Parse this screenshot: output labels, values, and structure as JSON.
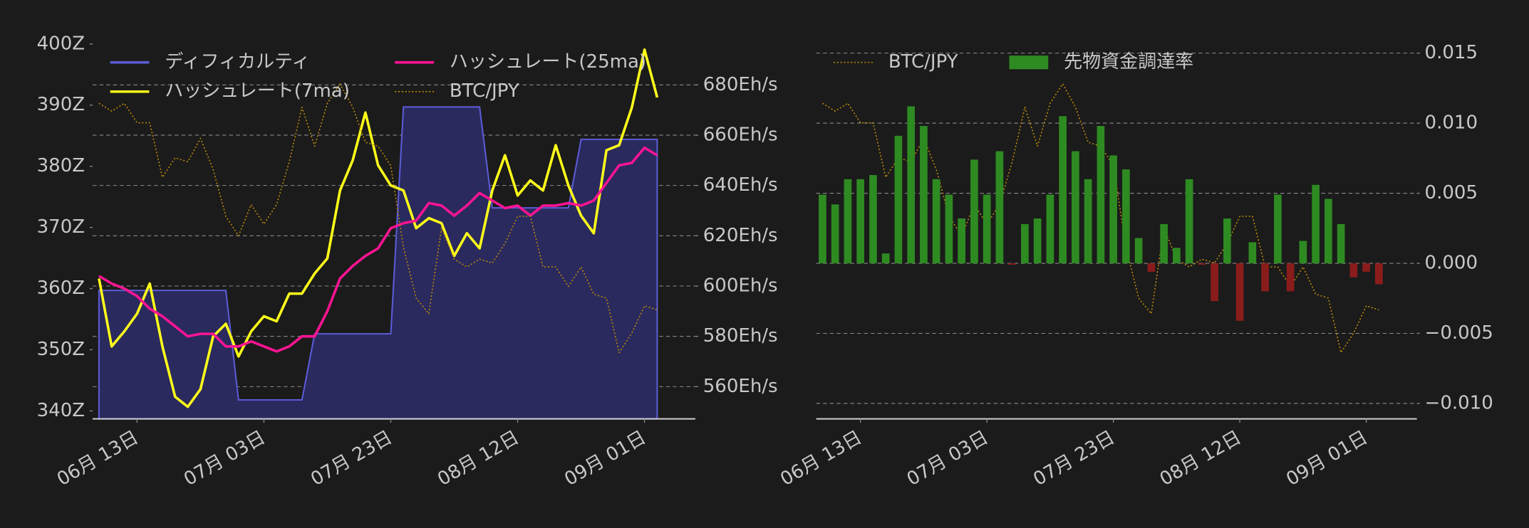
{
  "chart_data": [
    {
      "type": "line",
      "x": [
        "06-07",
        "06-09",
        "06-11",
        "06-13",
        "06-15",
        "06-17",
        "06-19",
        "06-21",
        "06-23",
        "06-25",
        "06-27",
        "06-29",
        "07-01",
        "07-03",
        "07-05",
        "07-07",
        "07-09",
        "07-11",
        "07-13",
        "07-15",
        "07-17",
        "07-19",
        "07-21",
        "07-23",
        "07-25",
        "07-27",
        "07-29",
        "07-31",
        "08-02",
        "08-04",
        "08-06",
        "08-08",
        "08-10",
        "08-12",
        "08-14",
        "08-16",
        "08-18",
        "08-20",
        "08-22",
        "08-24",
        "08-26",
        "08-28",
        "08-30",
        "09-01",
        "09-03"
      ],
      "xlim": [
        "06-06",
        "09-09"
      ],
      "xticks": [
        {
          "value": "06-13",
          "label": "06月 13日"
        },
        {
          "value": "07-03",
          "label": "07月 03日"
        },
        {
          "value": "07-23",
          "label": "07月 23日"
        },
        {
          "value": "08-12",
          "label": "08月 12日"
        },
        {
          "value": "09-01",
          "label": "09月 01日"
        }
      ],
      "ylim": [
        338.7,
        402.4
      ],
      "yticks": [
        {
          "value": 340,
          "label": "340Z"
        },
        {
          "value": 350,
          "label": "350Z"
        },
        {
          "value": 360,
          "label": "360Z"
        },
        {
          "value": 370,
          "label": "370Z"
        },
        {
          "value": 380,
          "label": "380Z"
        },
        {
          "value": 390,
          "label": "390Z"
        },
        {
          "value": 400,
          "label": "400Z"
        }
      ],
      "ytick_side": "left",
      "y2lim": [
        547.2,
        702.1
      ],
      "y2ticks": [
        {
          "value": 560,
          "label": "560Eh/s"
        },
        {
          "value": 580,
          "label": "580Eh/s"
        },
        {
          "value": 600,
          "label": "600Eh/s"
        },
        {
          "value": 620,
          "label": "620Eh/s"
        },
        {
          "value": 640,
          "label": "640Eh/s"
        },
        {
          "value": 660,
          "label": "660Eh/s"
        },
        {
          "value": 680,
          "label": "680Eh/s"
        }
      ],
      "y3lim": [
        0,
        100
      ],
      "grid_axis": "y2",
      "legend_loc": "upper left",
      "legend_columns": 2,
      "series": [
        {
          "name": "ディフィカルティ",
          "type": "area",
          "color": "#5b5bd6",
          "fill": "#2a2a5e",
          "axis": "y",
          "values": [
            359.7,
            359.7,
            359.7,
            359.7,
            359.7,
            359.7,
            359.7,
            359.7,
            359.7,
            359.7,
            359.7,
            341.8,
            341.8,
            341.8,
            341.8,
            341.8,
            341.8,
            352.6,
            352.6,
            352.6,
            352.6,
            352.6,
            352.6,
            352.6,
            389.7,
            389.7,
            389.7,
            389.7,
            389.7,
            389.7,
            389.7,
            373.2,
            373.2,
            373.2,
            373.2,
            373.2,
            373.2,
            373.2,
            384.4,
            384.4,
            384.4,
            384.4,
            384.4,
            384.4,
            384.4
          ]
        },
        {
          "name": "ハッシュレート(7ma)",
          "type": "line",
          "color": "#ffff1a",
          "axis": "y2",
          "values": [
            603,
            576,
            582,
            589,
            601,
            576,
            556,
            552,
            559,
            580,
            585,
            572,
            582,
            588,
            586,
            597,
            597,
            605,
            611,
            638,
            650,
            669,
            648,
            640,
            638,
            623,
            627,
            625,
            612,
            621,
            615,
            638,
            652,
            636,
            642,
            638,
            656,
            640,
            628,
            621,
            654,
            656,
            671,
            694,
            675
          ]
        },
        {
          "name": "ハッシュレート(25ma)",
          "type": "line",
          "color": "#ff1493",
          "axis": "y2",
          "values": [
            604,
            601,
            599,
            596,
            591,
            588,
            584,
            580,
            581,
            581,
            576,
            576,
            578,
            576,
            574,
            576,
            580,
            580,
            590,
            603,
            608,
            612,
            615,
            623,
            625,
            626,
            633,
            632,
            628,
            632,
            637,
            634,
            631,
            632,
            628,
            632,
            632,
            633,
            632,
            634,
            641,
            648,
            649,
            655,
            652
          ]
        },
        {
          "name": "BTC/JPY",
          "type": "line",
          "style": "dotted",
          "color": "#b8860b",
          "axis": "y3",
          "values": [
            81,
            79,
            81,
            76,
            76,
            62,
            67,
            66,
            72,
            64,
            52,
            47,
            55,
            50,
            55,
            66,
            80,
            70,
            81,
            86,
            80,
            71,
            70,
            65,
            44,
            31,
            27,
            49,
            41,
            39,
            41,
            40,
            45,
            52,
            52,
            39,
            39,
            34,
            39,
            32,
            31,
            17,
            22,
            29,
            28
          ]
        }
      ]
    },
    {
      "type": "bar",
      "x": [
        "06-07",
        "06-09",
        "06-11",
        "06-13",
        "06-15",
        "06-17",
        "06-19",
        "06-21",
        "06-23",
        "06-25",
        "06-27",
        "06-29",
        "07-01",
        "07-03",
        "07-05",
        "07-07",
        "07-09",
        "07-11",
        "07-13",
        "07-15",
        "07-17",
        "07-19",
        "07-21",
        "07-23",
        "07-25",
        "07-27",
        "07-29",
        "07-31",
        "08-02",
        "08-04",
        "08-06",
        "08-08",
        "08-10",
        "08-12",
        "08-14",
        "08-16",
        "08-18",
        "08-20",
        "08-22",
        "08-24",
        "08-26",
        "08-28",
        "08-30",
        "09-01",
        "09-03"
      ],
      "xlim": [
        "06-06",
        "09-09"
      ],
      "xticks": [
        {
          "value": "06-13",
          "label": "06月 13日"
        },
        {
          "value": "07-03",
          "label": "07月 03日"
        },
        {
          "value": "07-23",
          "label": "07月 23日"
        },
        {
          "value": "08-12",
          "label": "08月 12日"
        },
        {
          "value": "09-01",
          "label": "09月 01日"
        }
      ],
      "ylim": [
        -0.0111,
        0.0167
      ],
      "yticks": [
        {
          "value": -0.01,
          "label": "−0.010"
        },
        {
          "value": -0.005,
          "label": "−0.005"
        },
        {
          "value": 0,
          "label": "0.000"
        },
        {
          "value": 0.005,
          "label": "0.005"
        },
        {
          "value": 0.01,
          "label": "0.010"
        },
        {
          "value": 0.015,
          "label": "0.015"
        }
      ],
      "ytick_side": "right",
      "y3lim": [
        0,
        100
      ],
      "grid_axis": "y",
      "legend_loc": "upper left",
      "legend_columns": 2,
      "series": [
        {
          "name": "BTC/JPY",
          "type": "line",
          "style": "dotted",
          "color": "#b8860b",
          "axis": "y3",
          "values": [
            81,
            79,
            81,
            76,
            76,
            62,
            67,
            66,
            72,
            64,
            52,
            47,
            55,
            50,
            55,
            66,
            80,
            70,
            81,
            86,
            80,
            71,
            70,
            65,
            44,
            31,
            27,
            49,
            41,
            39,
            41,
            40,
            45,
            52,
            52,
            39,
            39,
            34,
            39,
            32,
            31,
            17,
            22,
            29,
            28
          ]
        },
        {
          "name": "先物資金調達率",
          "type": "bar",
          "color": "#2e8b22",
          "negative_color": "#8b1c1c",
          "axis": "y",
          "values": [
            0.0049,
            0.0042,
            0.006,
            0.006,
            0.0063,
            0.0007,
            0.0091,
            0.0112,
            0.0098,
            0.006,
            0.0049,
            0.0032,
            0.0074,
            0.0049,
            0.008,
            -0.0001,
            0.0028,
            0.0032,
            0.0049,
            0.0105,
            0.008,
            0.006,
            0.0098,
            0.0077,
            0.0067,
            0.0018,
            -0.0006,
            0.0028,
            0.0011,
            0.006,
            -0.0001,
            -0.0027,
            0.0032,
            -0.0041,
            0.0015,
            -0.002,
            0.0049,
            -0.002,
            0.0016,
            0.0056,
            0.0046,
            0.0028,
            -0.001,
            -0.0006,
            -0.0015
          ]
        }
      ]
    }
  ]
}
